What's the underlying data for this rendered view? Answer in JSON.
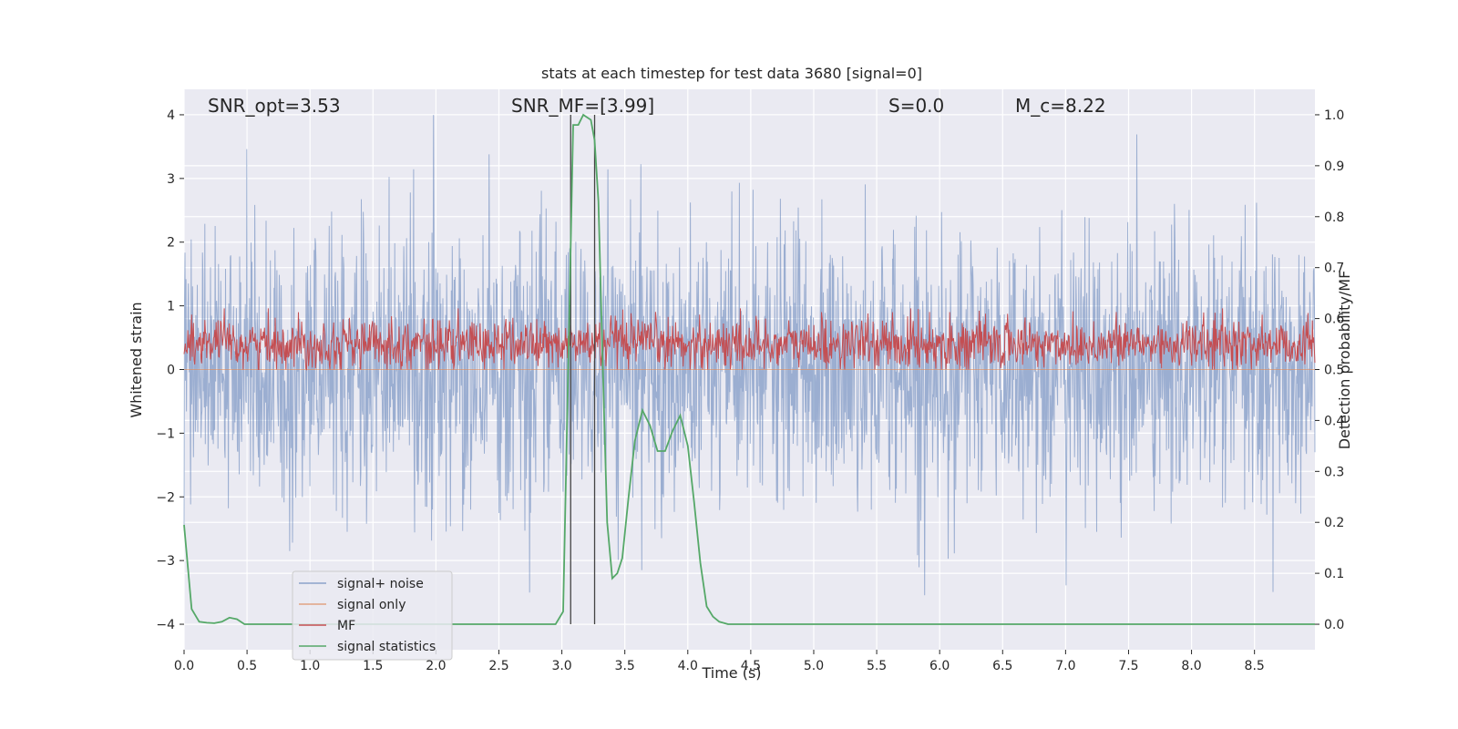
{
  "chart_data": {
    "type": "line",
    "title": "stats at each timestep for test data 3680 [signal=0]",
    "xlabel": "Time (s)",
    "ylabel": "Whitened strain",
    "ylabel_right": "Detection probability/MF",
    "xlim": [
      0.0,
      8.98
    ],
    "ylim": [
      -4.4,
      4.4
    ],
    "ylim_right": [
      -0.05,
      1.05
    ],
    "xticks": [
      0.0,
      0.5,
      1.0,
      1.5,
      2.0,
      2.5,
      3.0,
      3.5,
      4.0,
      4.5,
      5.0,
      5.5,
      6.0,
      6.5,
      7.0,
      7.5,
      8.0,
      8.5
    ],
    "xtick_labels": [
      "0.0",
      "0.5",
      "1.0",
      "1.5",
      "2.0",
      "2.5",
      "3.0",
      "3.5",
      "4.0",
      "4.5",
      "5.0",
      "5.5",
      "6.0",
      "6.5",
      "7.0",
      "7.5",
      "8.0",
      "8.5"
    ],
    "yticks": [
      4,
      3,
      2,
      1,
      0,
      -1,
      -2,
      -3,
      -4
    ],
    "ytick_labels": [
      "4",
      "3",
      "2",
      "1",
      "0",
      "−1",
      "−2",
      "−3",
      "−4"
    ],
    "yticks_right": [
      1.0,
      0.9,
      0.8,
      0.7,
      0.6,
      0.5,
      0.4,
      0.3,
      0.2,
      0.1,
      0.0
    ],
    "ytick_labels_right": [
      "1.0",
      "0.9",
      "0.8",
      "0.7",
      "0.6",
      "0.5",
      "0.4",
      "0.3",
      "0.2",
      "0.1",
      "0.0"
    ],
    "grid": true,
    "background": "#eaeaf2",
    "annotations": [
      {
        "id": "snr-opt",
        "text": "SNR_opt=3.53",
        "x": 0.2,
        "y": 4.05
      },
      {
        "id": "snr-mf",
        "text": "SNR_MF=[3.99]",
        "x": 2.6,
        "y": 4.05
      },
      {
        "id": "s-val",
        "text": "S=0.0",
        "x": 5.6,
        "y": 4.05
      },
      {
        "id": "mc-val",
        "text": "M_c=8.22",
        "x": 6.6,
        "y": 4.05
      }
    ],
    "vlines": [
      {
        "x": 3.07,
        "ymin": 0.0,
        "ymax": 1.0,
        "axis": "right"
      },
      {
        "x": 3.26,
        "ymin": 0.0,
        "ymax": 1.0,
        "axis": "right"
      }
    ],
    "series": [
      {
        "name": "signal+ noise",
        "color": "#4c72b0",
        "opacity": 0.5,
        "axis": "left",
        "render": "noise",
        "center": 0.0,
        "scale": 1.05,
        "clip": [
          -4.0,
          4.0
        ]
      },
      {
        "name": "signal only",
        "color": "#dd8452",
        "opacity": 0.6,
        "axis": "left",
        "render": "flat",
        "value": 0.0
      },
      {
        "name": "MF",
        "color": "#c44e52",
        "opacity": 1.0,
        "axis": "right",
        "render": "noise-band",
        "low": 0.5,
        "high": 0.62,
        "center": 0.55
      },
      {
        "name": "signal statistics",
        "color": "#55a868",
        "opacity": 1.0,
        "axis": "right",
        "render": "line",
        "x": [
          0.0,
          0.06,
          0.12,
          0.18,
          0.24,
          0.3,
          0.36,
          0.42,
          0.48,
          0.55,
          0.7,
          1.0,
          1.5,
          2.0,
          2.5,
          2.95,
          3.01,
          3.05,
          3.09,
          3.13,
          3.17,
          3.2,
          3.23,
          3.26,
          3.29,
          3.32,
          3.36,
          3.4,
          3.44,
          3.48,
          3.53,
          3.58,
          3.64,
          3.7,
          3.76,
          3.82,
          3.88,
          3.94,
          4.0,
          4.05,
          4.1,
          4.15,
          4.2,
          4.25,
          4.32,
          4.4,
          5.0,
          6.0,
          7.0,
          8.0,
          8.98
        ],
        "y": [
          0.195,
          0.03,
          0.005,
          0.003,
          0.002,
          0.005,
          0.013,
          0.01,
          0.0,
          0.0,
          0.0,
          0.0,
          0.0,
          0.0,
          0.0,
          0.0,
          0.025,
          0.5,
          0.98,
          0.98,
          1.0,
          0.995,
          0.99,
          0.95,
          0.83,
          0.55,
          0.2,
          0.09,
          0.1,
          0.13,
          0.25,
          0.36,
          0.42,
          0.39,
          0.34,
          0.34,
          0.38,
          0.41,
          0.35,
          0.24,
          0.12,
          0.035,
          0.015,
          0.005,
          0.0,
          0.0,
          0.0,
          0.0,
          0.0,
          0.0,
          0.0
        ]
      }
    ],
    "legend": {
      "placement": "lower-left",
      "entries": [
        {
          "label": "signal+ noise",
          "color": "#4c72b0",
          "opacity": 0.6
        },
        {
          "label": "signal only",
          "color": "#dd8452",
          "opacity": 0.7
        },
        {
          "label": "MF",
          "color": "#c44e52",
          "opacity": 1.0
        },
        {
          "label": "signal statistics",
          "color": "#55a868",
          "opacity": 1.0
        }
      ]
    }
  }
}
